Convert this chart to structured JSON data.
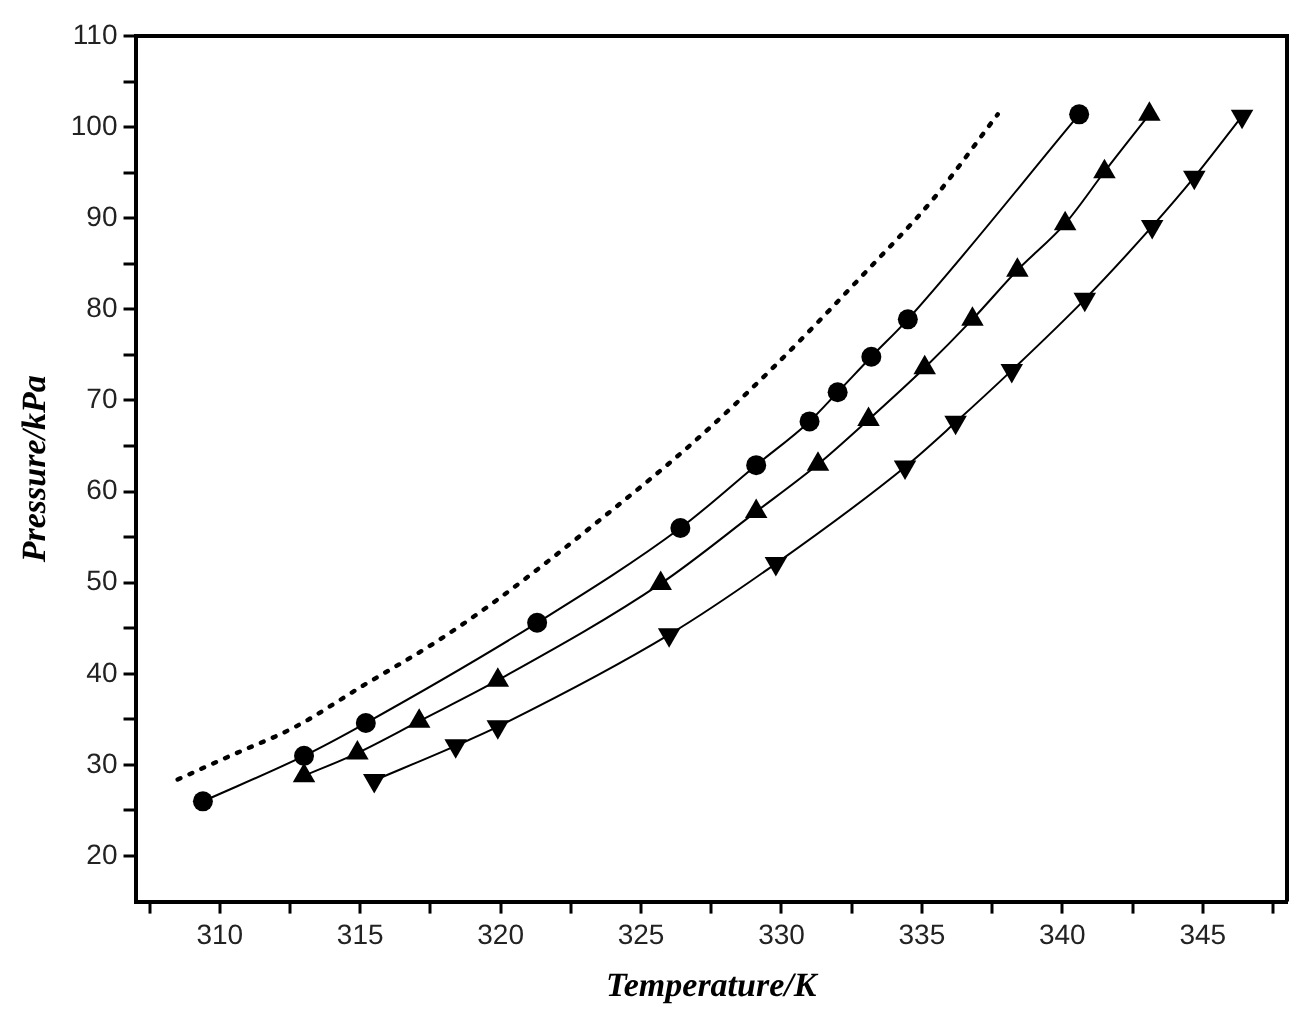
{
  "chart_data": {
    "type": "line",
    "xlabel": "Temperature/K",
    "ylabel": "Pressure/kPa",
    "xlim": [
      307,
      348
    ],
    "ylim": [
      15,
      110
    ],
    "xticks": [
      {
        "value": 307.5,
        "label": null
      },
      310,
      {
        "value": 312.5,
        "label": null
      },
      315,
      {
        "value": 317.5,
        "label": null
      },
      320,
      {
        "value": 322.5,
        "label": null
      },
      325,
      {
        "value": 327.5,
        "label": null
      },
      330,
      {
        "value": 332.5,
        "label": null
      },
      335,
      {
        "value": 337.5,
        "label": null
      },
      340,
      {
        "value": 342.5,
        "label": null
      },
      345,
      {
        "value": 347.5,
        "label": null
      }
    ],
    "yticks": [
      20,
      {
        "value": 25,
        "label": null
      },
      30,
      {
        "value": 35,
        "label": null
      },
      40,
      {
        "value": 45,
        "label": null
      },
      50,
      {
        "value": 55,
        "label": null
      },
      60,
      {
        "value": 65,
        "label": null
      },
      70,
      {
        "value": 75,
        "label": null
      },
      80,
      {
        "value": 85,
        "label": null
      },
      90,
      {
        "value": 95,
        "label": null
      },
      100,
      {
        "value": 105,
        "label": null
      },
      110
    ],
    "grid": false,
    "legend": false,
    "series": [
      {
        "type": "line",
        "color": "#000000",
        "marker": "none",
        "line_style": "dotted",
        "x": [
          308.5,
          310.3,
          312.7,
          315.1,
          317.7,
          320.0,
          323.7,
          326.9,
          329.7,
          333.0,
          335.4,
          337.7
        ],
        "values": [
          28.4,
          30.9,
          34.2,
          38.7,
          43.5,
          48.4,
          57.3,
          65.5,
          73.6,
          84.1,
          92.1,
          101.4
        ]
      },
      {
        "type": "line",
        "color": "#000000",
        "marker": "circle",
        "line_style": "solid",
        "x": [
          309.4,
          313.0,
          315.2,
          321.3,
          326.4,
          329.1,
          331.0,
          332.0,
          333.2,
          334.5,
          340.6
        ],
        "values": [
          26.0,
          31.0,
          34.6,
          45.6,
          56.0,
          62.9,
          67.7,
          70.9,
          74.8,
          78.9,
          101.4
        ]
      },
      {
        "type": "line",
        "color": "#000000",
        "marker": "triangle",
        "line_style": "solid",
        "x": [
          313.0,
          314.9,
          317.1,
          319.9,
          325.7,
          329.1,
          331.3,
          333.1,
          335.1,
          336.8,
          338.4,
          340.1,
          341.5,
          343.1
        ],
        "values": [
          28.8,
          31.3,
          34.8,
          39.3,
          49.9,
          57.8,
          63.0,
          67.9,
          73.6,
          78.9,
          84.3,
          89.4,
          95.1,
          101.4
        ]
      },
      {
        "type": "line",
        "color": "#000000",
        "marker": "triangle-down",
        "line_style": "solid",
        "x": [
          315.5,
          318.4,
          319.9,
          326.0,
          329.8,
          334.4,
          336.2,
          338.2,
          340.8,
          343.2,
          344.7,
          346.4
        ],
        "values": [
          28.3,
          32.1,
          34.2,
          44.3,
          52.1,
          62.7,
          67.6,
          73.3,
          81.1,
          89.1,
          94.5,
          101.2
        ]
      }
    ]
  }
}
